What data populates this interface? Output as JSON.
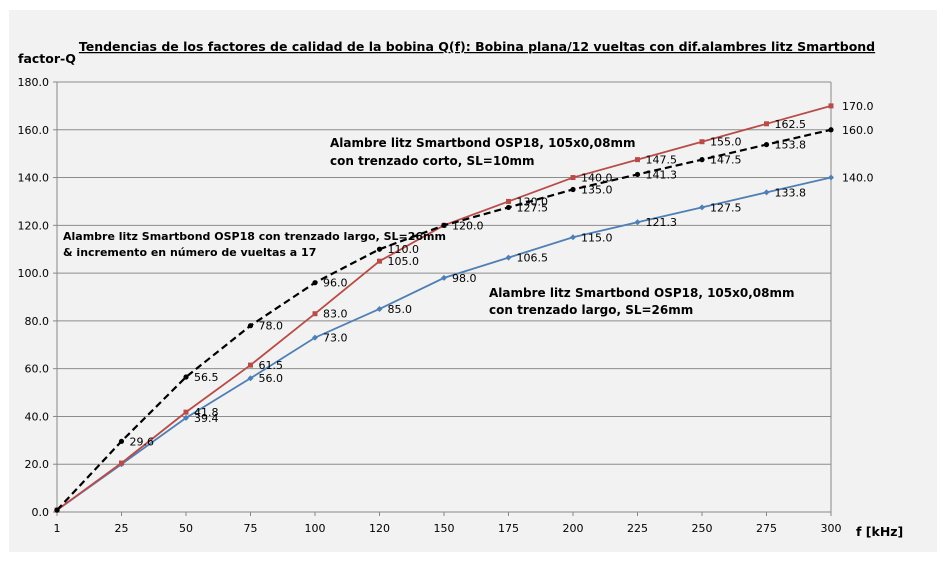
{
  "chart_data": {
    "type": "line",
    "title": "Tendencias de los factores de calidad de la bobina Q(f): Bobina plana/12 vueltas con dif.alambres litz Smartbond",
    "ylabel": "factor-Q",
    "xlabel": "f [kHz]",
    "categories": [
      "1",
      "25",
      "50",
      "75",
      "100",
      "120",
      "150",
      "175",
      "200",
      "225",
      "250",
      "275",
      "300"
    ],
    "ylim": [
      0,
      180
    ],
    "yticks": [
      "0.0",
      "20.0",
      "40.0",
      "60.0",
      "80.0",
      "100.0",
      "120.0",
      "140.0",
      "160.0",
      "180.0"
    ],
    "grid": true,
    "series": [
      {
        "key": "red",
        "color": "#b84c48",
        "marker": "square",
        "style": "solid",
        "x": [
          1,
          25,
          50,
          75,
          100,
          120,
          150,
          175,
          200,
          225,
          250,
          275,
          300
        ],
        "values": [
          0.8,
          20.5,
          41.8,
          61.5,
          83.0,
          105.0,
          120.0,
          130.0,
          140.0,
          147.5,
          155.0,
          162.5,
          170.0
        ],
        "labels": [
          "",
          "",
          "41.8",
          "61.5",
          "83.0",
          "105.0",
          "",
          "130.0",
          "140.0",
          "147.5",
          "155.0",
          "162.5",
          "170.0"
        ]
      },
      {
        "key": "blue",
        "color": "#4f7fb5",
        "marker": "diamond",
        "style": "solid",
        "x": [
          1,
          25,
          50,
          75,
          100,
          120,
          150,
          175,
          200,
          225,
          250,
          275,
          300
        ],
        "values": [
          0.8,
          20.0,
          39.4,
          56.0,
          73.0,
          85.0,
          98.0,
          106.5,
          115.0,
          121.3,
          127.5,
          133.8,
          140.0
        ],
        "labels": [
          "",
          "",
          "39.4",
          "56.0",
          "73.0",
          "85.0",
          "98.0",
          "106.5",
          "115.0",
          "121.3",
          "127.5",
          "133.8",
          "140.0"
        ]
      },
      {
        "key": "black",
        "color": "#000000",
        "marker": "circle",
        "style": "dashed",
        "x": [
          1,
          25,
          50,
          75,
          100,
          120,
          150,
          175,
          200,
          225,
          250,
          275,
          300
        ],
        "values": [
          0.8,
          29.6,
          56.5,
          78.0,
          96.0,
          110.0,
          120.0,
          127.5,
          135.0,
          141.3,
          147.5,
          153.8,
          160.0
        ],
        "labels": [
          "",
          "29.6",
          "56.5",
          "78.0",
          "96.0",
          "110.0",
          "120.0",
          "127.5",
          "135.0",
          "141.3",
          "147.5",
          "153.8",
          "160.0"
        ]
      }
    ],
    "annotations": [
      {
        "key": "red",
        "lines": [
          "Alambre litz Smartbond OSP18, 105x0,08mm",
          "con trenzado corto, SL=10mm"
        ]
      },
      {
        "key": "black",
        "lines": [
          "Alambre litz Smartbond OSP18  con trenzado largo, SL=26mm",
          "& incremento en número de vueltas a 17"
        ]
      },
      {
        "key": "blue",
        "lines": [
          "Alambre litz Smartbond OSP18, 105x0,08mm",
          "con trenzado largo, SL=26mm"
        ]
      }
    ]
  }
}
